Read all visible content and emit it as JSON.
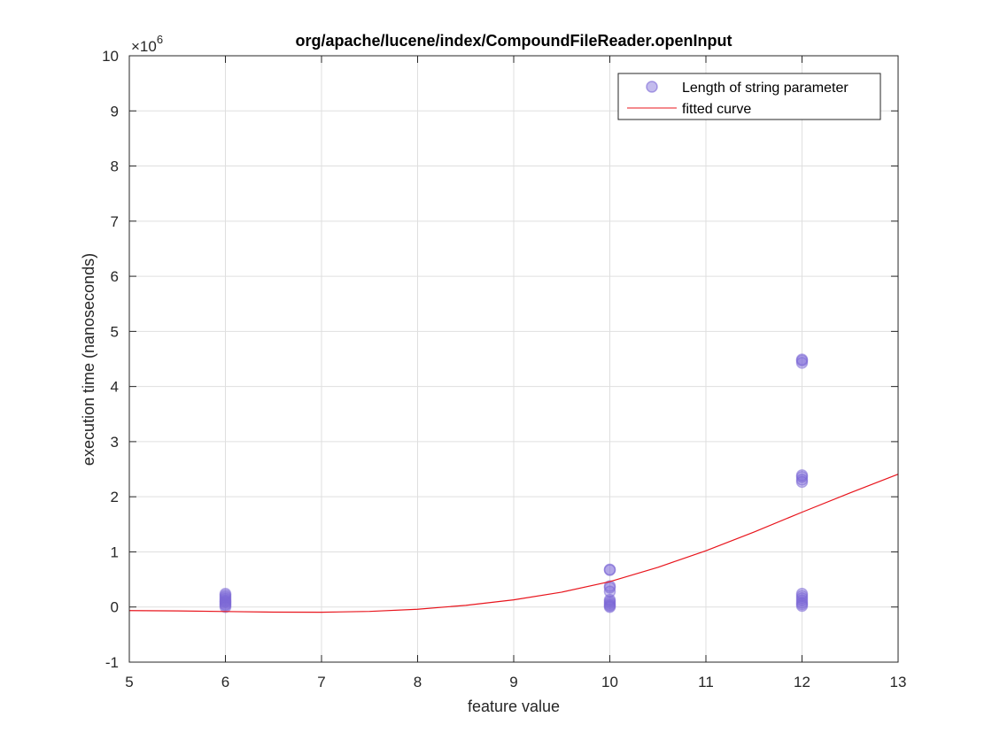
{
  "chart_data": {
    "type": "scatter",
    "title": "org/apache/lucene/index/CompoundFileReader.openInput",
    "xlabel": "feature value",
    "ylabel": "execution time (nanoseconds)",
    "xlim": [
      5,
      13
    ],
    "ylim": [
      -1,
      10
    ],
    "y_multiplier_label": "×10",
    "y_multiplier_exponent": "6",
    "x_ticks": [
      5,
      6,
      7,
      8,
      9,
      10,
      11,
      12,
      13
    ],
    "y_ticks": [
      -1,
      0,
      1,
      2,
      3,
      4,
      5,
      6,
      7,
      8,
      9,
      10
    ],
    "grid": true,
    "legend_position": "top-right",
    "series": [
      {
        "name": "Length of string parameter",
        "kind": "scatter",
        "color": "#7b68d6",
        "points": [
          [
            6,
            0.0
          ],
          [
            6,
            0.03
          ],
          [
            6,
            0.05
          ],
          [
            6,
            0.08
          ],
          [
            6,
            0.1
          ],
          [
            6,
            0.12
          ],
          [
            6,
            0.15
          ],
          [
            6,
            0.18
          ],
          [
            6,
            0.21
          ],
          [
            6,
            0.24
          ],
          [
            10,
            0.0
          ],
          [
            10,
            0.02
          ],
          [
            10,
            0.04
          ],
          [
            10,
            0.07
          ],
          [
            10,
            0.1
          ],
          [
            10,
            0.13
          ],
          [
            10,
            0.28
          ],
          [
            10,
            0.35
          ],
          [
            10,
            0.38
          ],
          [
            10,
            0.67
          ],
          [
            10,
            0.68
          ],
          [
            12,
            0.02
          ],
          [
            12,
            0.05
          ],
          [
            12,
            0.08
          ],
          [
            12,
            0.12
          ],
          [
            12,
            0.16
          ],
          [
            12,
            0.2
          ],
          [
            12,
            0.24
          ],
          [
            12,
            2.27
          ],
          [
            12,
            2.31
          ],
          [
            12,
            2.36
          ],
          [
            12,
            2.39
          ],
          [
            12,
            4.43
          ],
          [
            12,
            4.47
          ],
          [
            12,
            4.49
          ]
        ]
      },
      {
        "name": "fitted curve",
        "kind": "line",
        "color": "#e8141c",
        "points": [
          [
            5,
            -0.065
          ],
          [
            5.5,
            -0.07
          ],
          [
            6,
            -0.082
          ],
          [
            6.5,
            -0.093
          ],
          [
            7,
            -0.095
          ],
          [
            7.5,
            -0.08
          ],
          [
            8,
            -0.04
          ],
          [
            8.5,
            0.03
          ],
          [
            9,
            0.13
          ],
          [
            9.5,
            0.27
          ],
          [
            10,
            0.46
          ],
          [
            10.5,
            0.72
          ],
          [
            11,
            1.02
          ],
          [
            11.5,
            1.36
          ],
          [
            12,
            1.72
          ],
          [
            12.5,
            2.07
          ],
          [
            13,
            2.41
          ]
        ]
      }
    ]
  }
}
